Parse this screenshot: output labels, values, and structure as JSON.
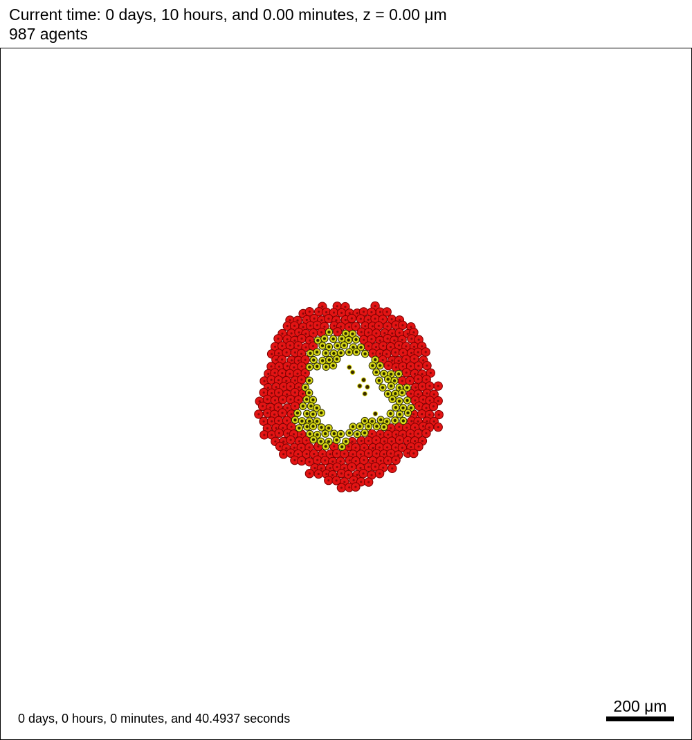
{
  "header": {
    "time_text": "Current time: 0 days, 10 hours, and 0.00 minutes, z = 0.00 μm",
    "agent_count_text": "987 agents"
  },
  "footer": {
    "elapsed_text": "0 days, 0 hours, 0 minutes, and 40.4937 seconds",
    "scale_label": "200 μm"
  },
  "colors": {
    "background": "#ffffff",
    "frame_border": "#000000",
    "outer_cell_fill": "#e31414",
    "outer_cell_edge": "#7a0000",
    "inner_cell_fill": "#d8d816",
    "inner_cell_edge": "#2b2b00",
    "cell_nucleus": "#3a2a00",
    "core": "#ffffff"
  }
}
